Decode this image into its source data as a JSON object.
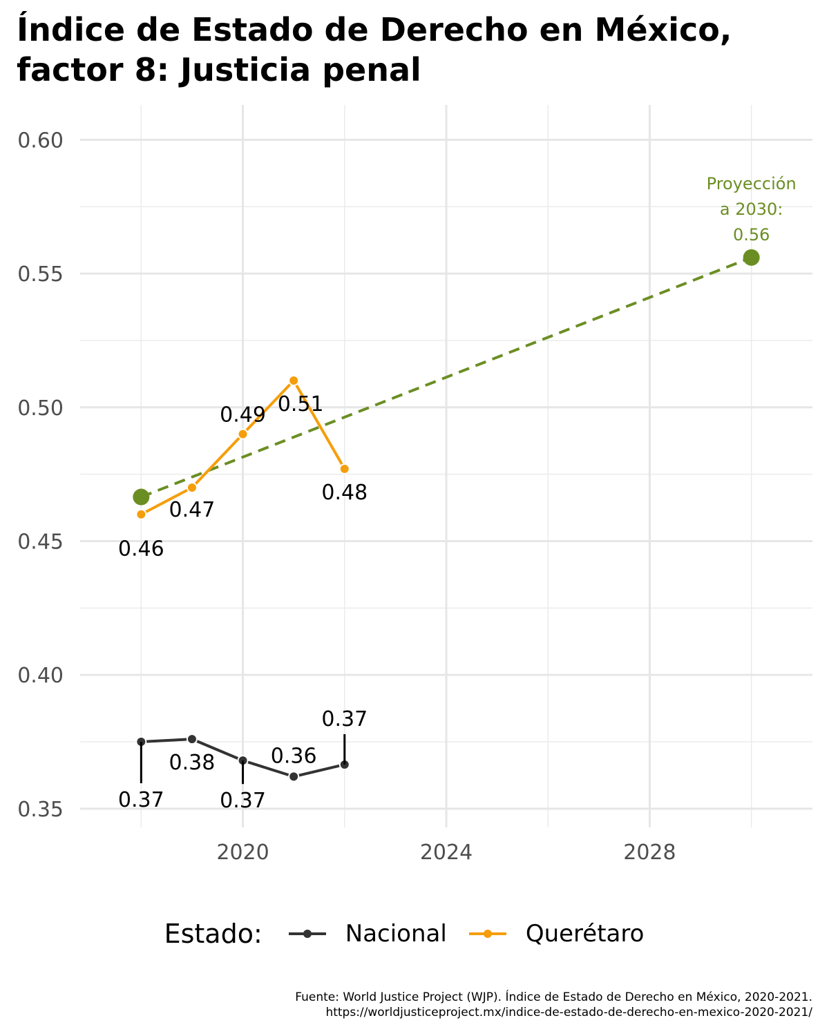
{
  "title_line1": "Índice de Estado de Derecho en México,",
  "title_line2": "factor 8: Justicia penal",
  "legend": {
    "title": "Estado:",
    "items": [
      {
        "label": "Nacional",
        "color": "#333333"
      },
      {
        "label": "Querétaro",
        "color": "#F59E0B"
      }
    ]
  },
  "caption_line1": "Fuente: World Justice Project (WJP). Índice de Estado de Derecho en México, 2020-2021.",
  "caption_line2": "https://worldjusticeproject.mx/indice-de-estado-de-derecho-en-mexico-2020-2021/",
  "chart_data": {
    "type": "line",
    "xlim": [
      2016.8,
      2031.2
    ],
    "ylim": [
      0.343,
      0.613
    ],
    "x_ticks": [
      2020,
      2024,
      2028
    ],
    "y_ticks": [
      "0.35",
      "0.40",
      "0.45",
      "0.50",
      "0.55",
      "0.60"
    ],
    "grid": true,
    "legend_position": "bottom",
    "series": [
      {
        "name": "Nacional",
        "color": "#333333",
        "x": [
          2018,
          2019,
          2020,
          2021,
          2022
        ],
        "y": [
          0.375,
          0.376,
          0.368,
          0.362,
          0.3665
        ],
        "labels": [
          "0.37",
          "0.38",
          "0.37",
          "0.36",
          "0.37"
        ]
      },
      {
        "name": "Querétaro",
        "color": "#F59E0B",
        "x": [
          2018,
          2019,
          2020,
          2021,
          2022
        ],
        "y": [
          0.46,
          0.47,
          0.49,
          0.51,
          0.477
        ],
        "labels": [
          "0.46",
          "0.47",
          "0.49",
          "0.51",
          "0.48"
        ]
      }
    ],
    "projection": {
      "color": "#6B8E23",
      "x": [
        2018,
        2030
      ],
      "y": [
        0.4665,
        0.556
      ],
      "annotation": [
        "Proyección",
        "a 2030:",
        "0.56"
      ]
    }
  }
}
